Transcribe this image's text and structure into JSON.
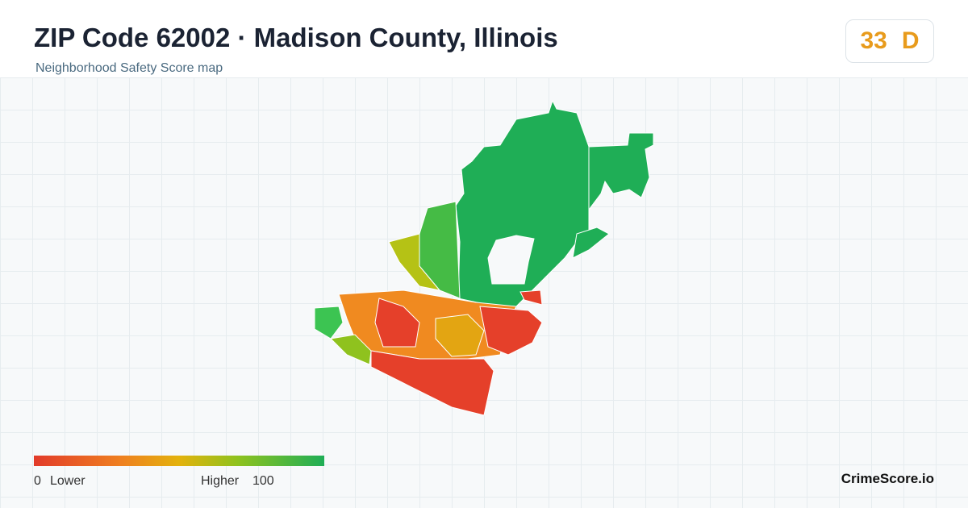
{
  "header": {
    "title": "ZIP Code 62002 · Madison County, Illinois",
    "subtitle": "Neighborhood Safety Score map"
  },
  "score": {
    "value": "33",
    "grade": "D"
  },
  "legend": {
    "min": "0",
    "min_label": "Lower",
    "max_label": "Higher",
    "max": "100"
  },
  "footer": {
    "brand": "CrimeScore.io"
  }
}
